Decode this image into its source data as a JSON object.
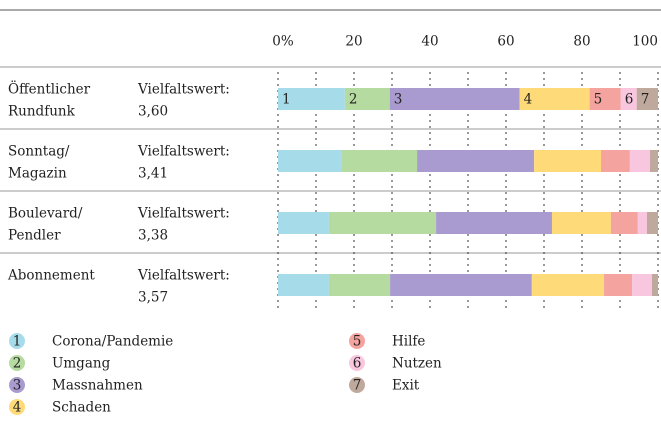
{
  "chart_data": {
    "type": "stacked_bar_horizontal",
    "categories": [
      {
        "lines": [
          "Öffentlicher",
          "Rundfunk"
        ],
        "score_label": "Vielfaltswert:",
        "score": "3,60"
      },
      {
        "lines": [
          "Sonntag/",
          "Magazin"
        ],
        "score_label": "Vielfaltswert:",
        "score": "3,41"
      },
      {
        "lines": [
          "Boulevard/",
          "Pendler"
        ],
        "score_label": "Vielfaltswert:",
        "score": "3,38"
      },
      {
        "lines": [
          "Abonnement"
        ],
        "score_label": "Vielfaltswert:",
        "score": "3,57"
      }
    ],
    "series": [
      {
        "number": "1",
        "name": "Corona/Pandemie",
        "color": "#a6dcea",
        "values": [
          17.6,
          16.6,
          13.4,
          13.4
        ]
      },
      {
        "number": "2",
        "name": "Umgang",
        "color": "#b6dba0",
        "values": [
          11.8,
          20.0,
          28.2,
          16.1
        ]
      },
      {
        "number": "3",
        "name": "Massnahmen",
        "color": "#a99bd0",
        "values": [
          34.2,
          30.8,
          30.5,
          37.3
        ]
      },
      {
        "number": "4",
        "name": "Schaden",
        "color": "#fedb78",
        "values": [
          18.4,
          17.6,
          15.5,
          19.0
        ]
      },
      {
        "number": "5",
        "name": "Hilfe",
        "color": "#f4a39e",
        "values": [
          8.2,
          7.6,
          7.1,
          7.4
        ]
      },
      {
        "number": "6",
        "name": "Nutzen",
        "color": "#f8c6de",
        "values": [
          4.2,
          5.3,
          2.4,
          5.2
        ]
      },
      {
        "number": "7",
        "name": "Exit",
        "color": "#bfa99d",
        "values": [
          5.6,
          2.1,
          2.9,
          1.6
        ]
      }
    ],
    "xlim": [
      0,
      100
    ],
    "xticks": [
      {
        "value": 0,
        "label": "0%"
      },
      20,
      40,
      60,
      80,
      100
    ],
    "minor_xticks": [
      10,
      30,
      50,
      70,
      90
    ],
    "grid": true
  }
}
